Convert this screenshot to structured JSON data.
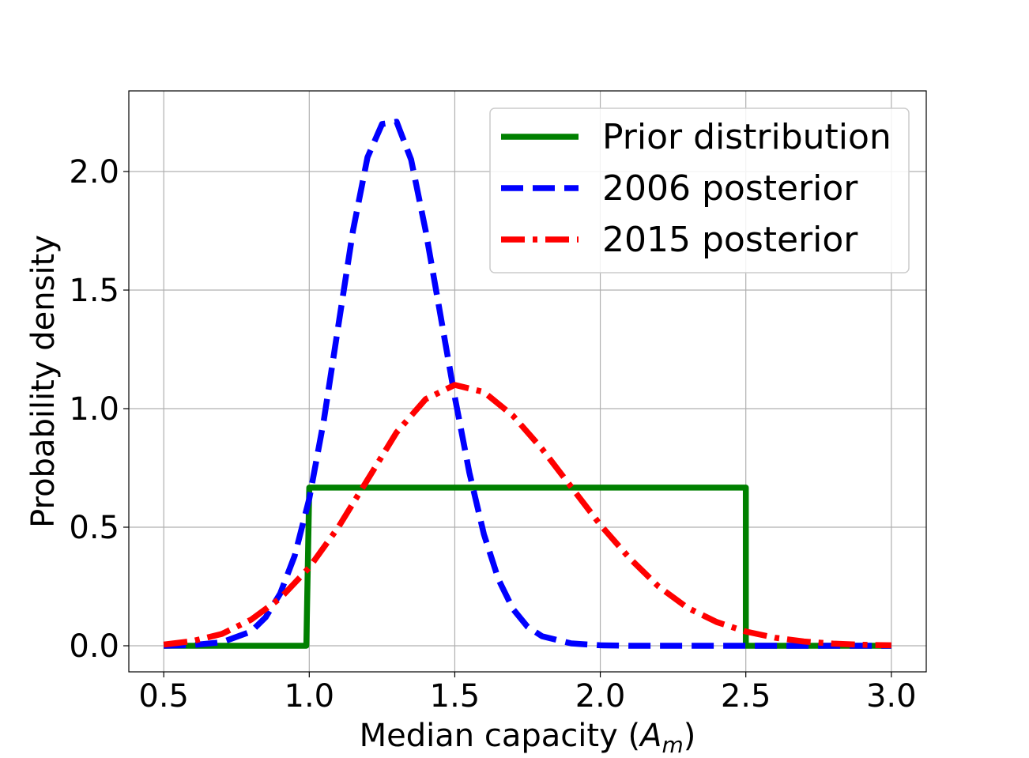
{
  "chart_data": {
    "type": "line",
    "xlabel": "Median capacity (",
    "xlabel_symbol": "A",
    "xlabel_subscript": "m",
    "xlabel_suffix": ")",
    "ylabel": "Probability density",
    "xlim": [
      0.38,
      3.12
    ],
    "ylim": [
      -0.11,
      2.34
    ],
    "xticks": [
      0.5,
      1.0,
      1.5,
      2.0,
      2.5,
      3.0
    ],
    "xtick_labels": [
      "0.5",
      "1.0",
      "1.5",
      "2.0",
      "2.5",
      "3.0"
    ],
    "yticks": [
      0.0,
      0.5,
      1.0,
      1.5,
      2.0
    ],
    "ytick_labels": [
      "0.0",
      "0.5",
      "1.0",
      "1.5",
      "2.0"
    ],
    "grid": true,
    "legend_position": "top-right",
    "series": [
      {
        "name": "Prior distribution",
        "color": "#008000",
        "style": "solid",
        "x": [
          0.5,
          0.99,
          0.99,
          1.0,
          1.5,
          2.0,
          2.49,
          2.5,
          2.5,
          3.0
        ],
        "y": [
          0.0,
          0.0,
          0.0,
          0.667,
          0.667,
          0.667,
          0.667,
          0.667,
          0.0,
          0.0
        ]
      },
      {
        "name": "2006 posterior",
        "color": "#0000ff",
        "style": "dashed",
        "x": [
          0.5,
          0.6,
          0.7,
          0.8,
          0.85,
          0.9,
          0.95,
          1.0,
          1.05,
          1.1,
          1.15,
          1.2,
          1.25,
          1.3,
          1.35,
          1.4,
          1.45,
          1.5,
          1.55,
          1.6,
          1.65,
          1.7,
          1.75,
          1.8,
          1.9,
          2.0,
          2.1,
          2.2,
          2.4,
          2.6,
          2.8,
          3.0
        ],
        "y": [
          0.0,
          0.003,
          0.015,
          0.06,
          0.12,
          0.22,
          0.38,
          0.62,
          0.95,
          1.35,
          1.75,
          2.06,
          2.2,
          2.21,
          2.05,
          1.75,
          1.4,
          1.05,
          0.73,
          0.47,
          0.28,
          0.155,
          0.08,
          0.04,
          0.01,
          0.002,
          0.0,
          0.0,
          0.0,
          0.0,
          0.0,
          0.0
        ]
      },
      {
        "name": "2015 posterior",
        "color": "#ff0000",
        "style": "dashdot",
        "x": [
          0.5,
          0.6,
          0.7,
          0.8,
          0.9,
          1.0,
          1.1,
          1.2,
          1.3,
          1.4,
          1.5,
          1.6,
          1.7,
          1.8,
          1.9,
          2.0,
          2.1,
          2.2,
          2.3,
          2.4,
          2.5,
          2.6,
          2.7,
          2.8,
          2.9,
          3.0
        ],
        "y": [
          0.005,
          0.02,
          0.05,
          0.11,
          0.2,
          0.33,
          0.5,
          0.7,
          0.9,
          1.04,
          1.1,
          1.07,
          0.97,
          0.83,
          0.67,
          0.51,
          0.37,
          0.25,
          0.16,
          0.1,
          0.06,
          0.034,
          0.018,
          0.009,
          0.004,
          0.002
        ]
      }
    ]
  }
}
